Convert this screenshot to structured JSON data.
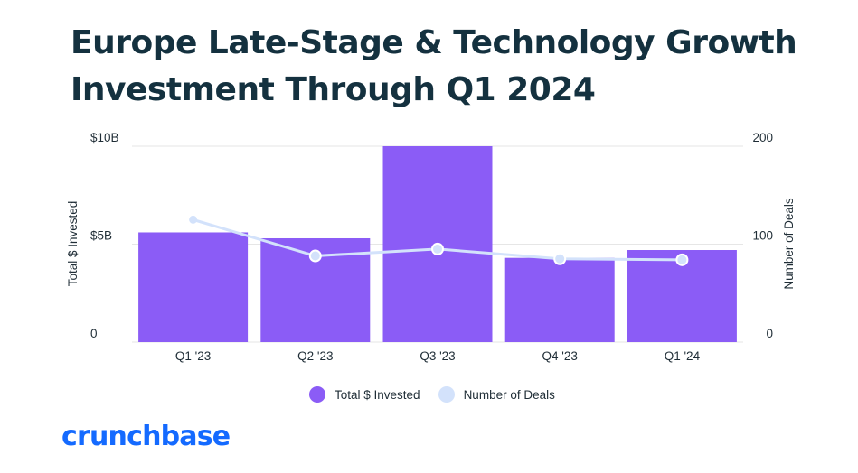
{
  "title_lines": [
    "Europe Late-Stage & Technology Growth",
    "Investment Through Q1 2024"
  ],
  "brand": "crunchbase",
  "colors": {
    "bar": "#8b5cf6",
    "line": "#d3e2fb",
    "brand": "#146aff",
    "title": "#14313f"
  },
  "chart_data": {
    "type": "bar",
    "categories": [
      "Q1 '23",
      "Q2 '23",
      "Q3 '23",
      "Q4 '23",
      "Q1 '24"
    ],
    "series": [
      {
        "name": "Total $ Invested",
        "type": "bar",
        "axis": "left",
        "values": [
          5.6,
          5.3,
          10.0,
          4.3,
          4.7
        ]
      },
      {
        "name": "Number of Deals",
        "type": "line",
        "axis": "right",
        "values": [
          125,
          88,
          95,
          85,
          84
        ]
      }
    ],
    "ylabel": "Total $ Invested",
    "y2label": "Number of Deals",
    "ylim": [
      0,
      10
    ],
    "y2lim": [
      0,
      200
    ],
    "y_ticks": [
      {
        "value": 0,
        "label": "0"
      },
      {
        "value": 5,
        "label": "$5B"
      },
      {
        "value": 10,
        "label": "$10B"
      }
    ],
    "y2_ticks": [
      {
        "value": 0,
        "label": "0"
      },
      {
        "value": 100,
        "label": "100"
      },
      {
        "value": 200,
        "label": "200"
      }
    ],
    "grid": true,
    "legend_position": "bottom"
  }
}
